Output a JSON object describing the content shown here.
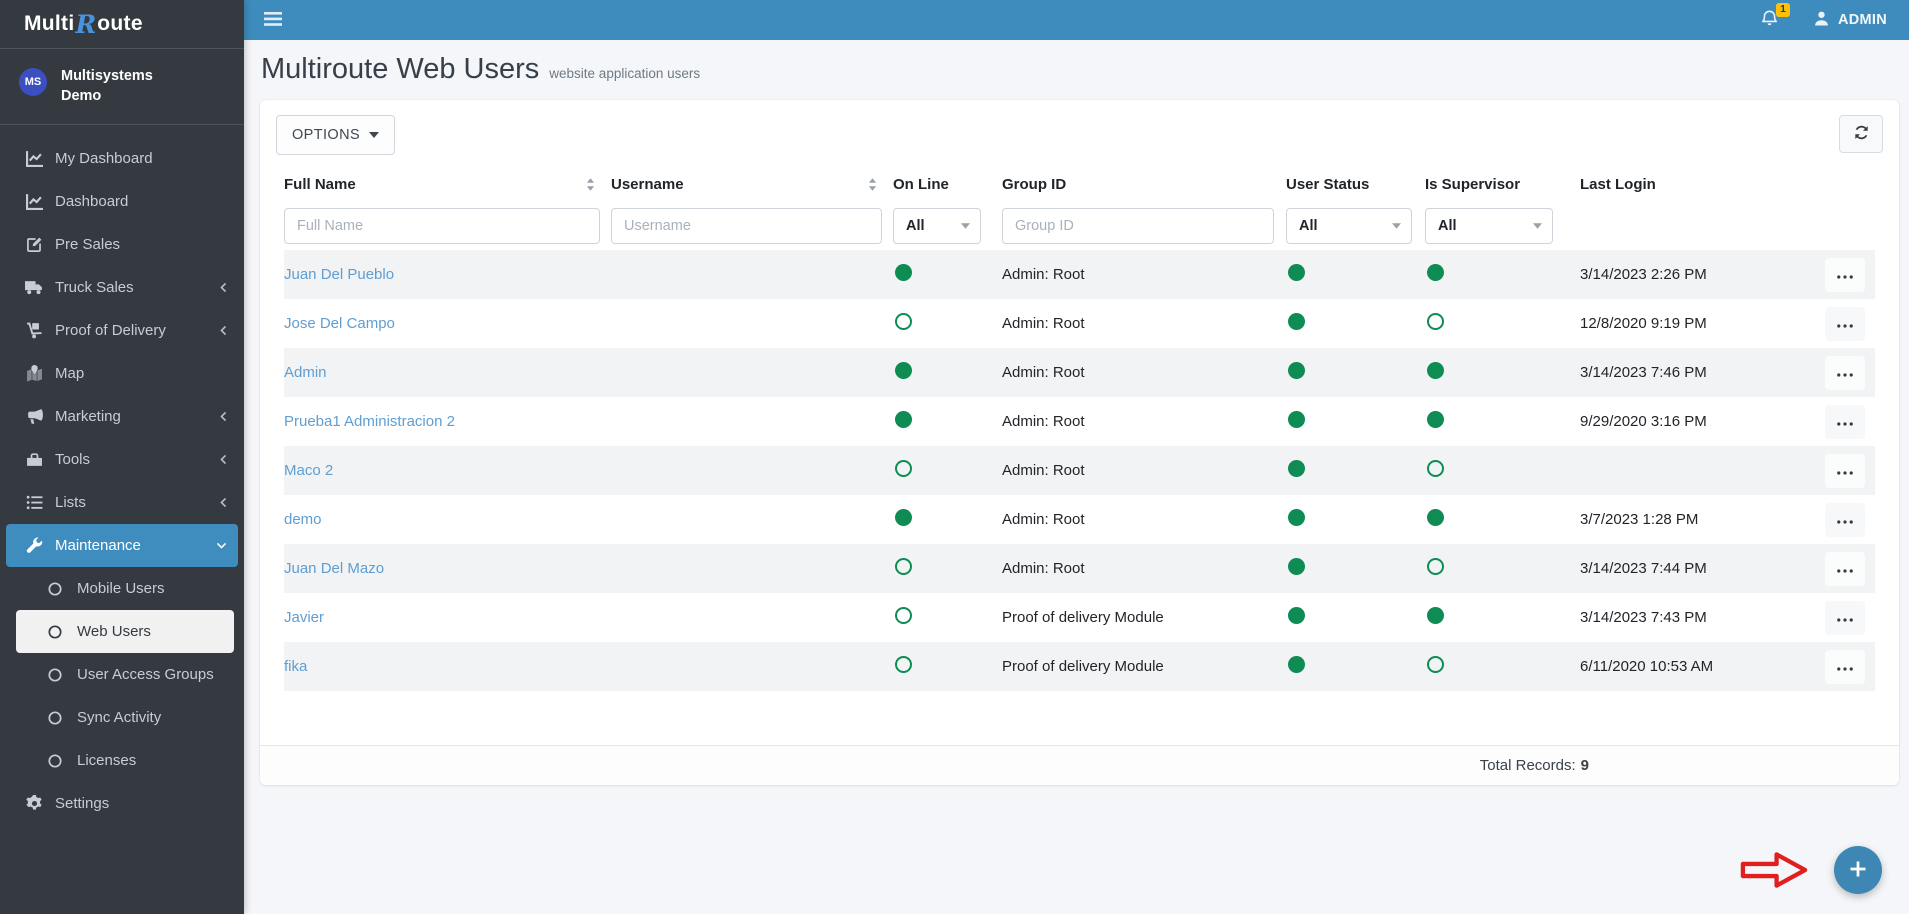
{
  "brand": {
    "multi": "Multi",
    "r": "R",
    "oute": "oute"
  },
  "user_panel": {
    "initials": "MS",
    "line1": "Multisystems",
    "line2": "Demo"
  },
  "topbar": {
    "badge": "1",
    "admin": "ADMIN"
  },
  "sidebar": {
    "items": [
      {
        "label": "My Dashboard",
        "icon": "chart-line-icon"
      },
      {
        "label": "Dashboard",
        "icon": "chart-line-icon"
      },
      {
        "label": "Pre Sales",
        "icon": "edit-icon"
      },
      {
        "label": "Truck Sales",
        "icon": "truck-icon",
        "chevron": "left"
      },
      {
        "label": "Proof of Delivery",
        "icon": "dolly-icon",
        "chevron": "left"
      },
      {
        "label": "Map",
        "icon": "map-icon"
      },
      {
        "label": "Marketing",
        "icon": "bullhorn-icon",
        "chevron": "left"
      },
      {
        "label": "Tools",
        "icon": "toolbox-icon",
        "chevron": "left"
      },
      {
        "label": "Lists",
        "icon": "list-icon",
        "chevron": "left"
      },
      {
        "label": "Maintenance",
        "icon": "wrench-icon",
        "chevron": "down",
        "active": true,
        "children": [
          {
            "label": "Mobile Users"
          },
          {
            "label": "Web Users",
            "active": true
          },
          {
            "label": "User Access Groups"
          },
          {
            "label": "Sync Activity"
          },
          {
            "label": "Licenses"
          }
        ]
      },
      {
        "label": "Settings",
        "icon": "gear-icon"
      }
    ]
  },
  "page": {
    "title": "Multiroute Web Users",
    "subtitle": "website application users"
  },
  "toolbar": {
    "options": "OPTIONS"
  },
  "table": {
    "columns": [
      "Full Name",
      "Username",
      "On Line",
      "Group ID",
      "User Status",
      "Is Supervisor",
      "Last Login"
    ],
    "filters": {
      "full_name_placeholder": "Full Name",
      "username_placeholder": "Username",
      "online_value": "All",
      "group_id_placeholder": "Group ID",
      "user_status_value": "All",
      "is_supervisor_value": "All"
    },
    "rows": [
      {
        "full_name": "Juan Del Pueblo",
        "username": "",
        "online": true,
        "group_id": "Admin: Root",
        "user_status": true,
        "is_supervisor": true,
        "last_login": "3/14/2023 2:26 PM"
      },
      {
        "full_name": "Jose Del Campo",
        "username": "",
        "online": false,
        "group_id": "Admin: Root",
        "user_status": true,
        "is_supervisor": false,
        "last_login": "12/8/2020 9:19 PM"
      },
      {
        "full_name": "Admin",
        "username": "",
        "online": true,
        "group_id": "Admin: Root",
        "user_status": true,
        "is_supervisor": true,
        "last_login": "3/14/2023 7:46 PM"
      },
      {
        "full_name": "Prueba1 Administracion 2",
        "username": "",
        "online": true,
        "group_id": "Admin: Root",
        "user_status": true,
        "is_supervisor": true,
        "last_login": "9/29/2020 3:16 PM"
      },
      {
        "full_name": "Maco 2",
        "username": "",
        "online": false,
        "group_id": "Admin: Root",
        "user_status": true,
        "is_supervisor": false,
        "last_login": ""
      },
      {
        "full_name": "demo",
        "username": "",
        "online": true,
        "group_id": "Admin: Root",
        "user_status": true,
        "is_supervisor": true,
        "last_login": "3/7/2023 1:28 PM"
      },
      {
        "full_name": "Juan Del Mazo",
        "username": "",
        "online": false,
        "group_id": "Admin: Root",
        "user_status": true,
        "is_supervisor": false,
        "last_login": "3/14/2023 7:44 PM"
      },
      {
        "full_name": "Javier",
        "username": "",
        "online": false,
        "group_id": "Proof of delivery Module",
        "user_status": true,
        "is_supervisor": true,
        "last_login": "3/14/2023 7:43 PM"
      },
      {
        "full_name": "fika",
        "username": "",
        "online": false,
        "group_id": "Proof of delivery Module",
        "user_status": true,
        "is_supervisor": false,
        "last_login": "6/11/2020 10:53 AM"
      }
    ],
    "footer": {
      "label": "Total Records:",
      "value": "9"
    }
  },
  "colors": {
    "topbar_blue": "#3e8cbd",
    "sidebar_dark": "#343a40",
    "active_nav_blue": "#3f8dbf",
    "status_green": "#0e8c53",
    "link_blue": "#5f9ed2",
    "badge_yellow": "#ffc107",
    "avatar_indigo": "#3b4fc0",
    "fab_blue": "#3e86b3",
    "annotation_red": "#e01f1f"
  }
}
